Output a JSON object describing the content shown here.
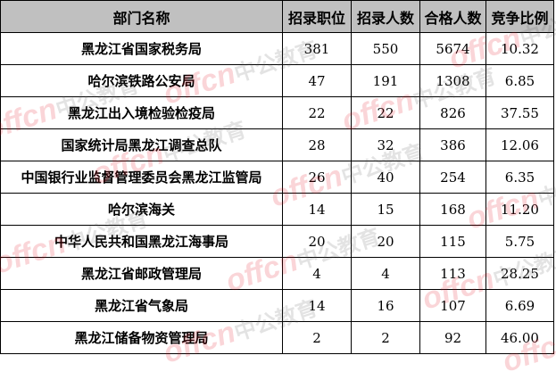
{
  "table": {
    "headers": [
      "部门名称",
      "招录职位",
      "招录人数",
      "合格人数",
      "竞争比例"
    ],
    "rows": [
      [
        "黑龙江省国家税务局",
        "381",
        "550",
        "5674",
        "10.32"
      ],
      [
        "哈尔滨铁路公安局",
        "47",
        "191",
        "1308",
        "6.85"
      ],
      [
        "黑龙江出入境检验检疫局",
        "22",
        "22",
        "826",
        "37.55"
      ],
      [
        "国家统计局黑龙江调查总队",
        "28",
        "32",
        "386",
        "12.06"
      ],
      [
        "中国银行业监督管理委员会黑龙江监管局",
        "26",
        "40",
        "254",
        "6.35"
      ],
      [
        "哈尔滨海关",
        "14",
        "15",
        "168",
        "11.20"
      ],
      [
        "中华人民共和国黑龙江海事局",
        "20",
        "20",
        "115",
        "5.75"
      ],
      [
        "黑龙江省邮政管理局",
        "4",
        "4",
        "113",
        "28.25"
      ],
      [
        "黑龙江省气象局",
        "14",
        "16",
        "107",
        "6.69"
      ],
      [
        "黑龙江储备物资管理局",
        "2",
        "2",
        "92",
        "46.00"
      ]
    ]
  },
  "watermark": {
    "logo": "offcn",
    "text": "中公教育"
  },
  "colors": {
    "header_bg": "#c0c0c0",
    "watermark_red": "#e60012"
  }
}
